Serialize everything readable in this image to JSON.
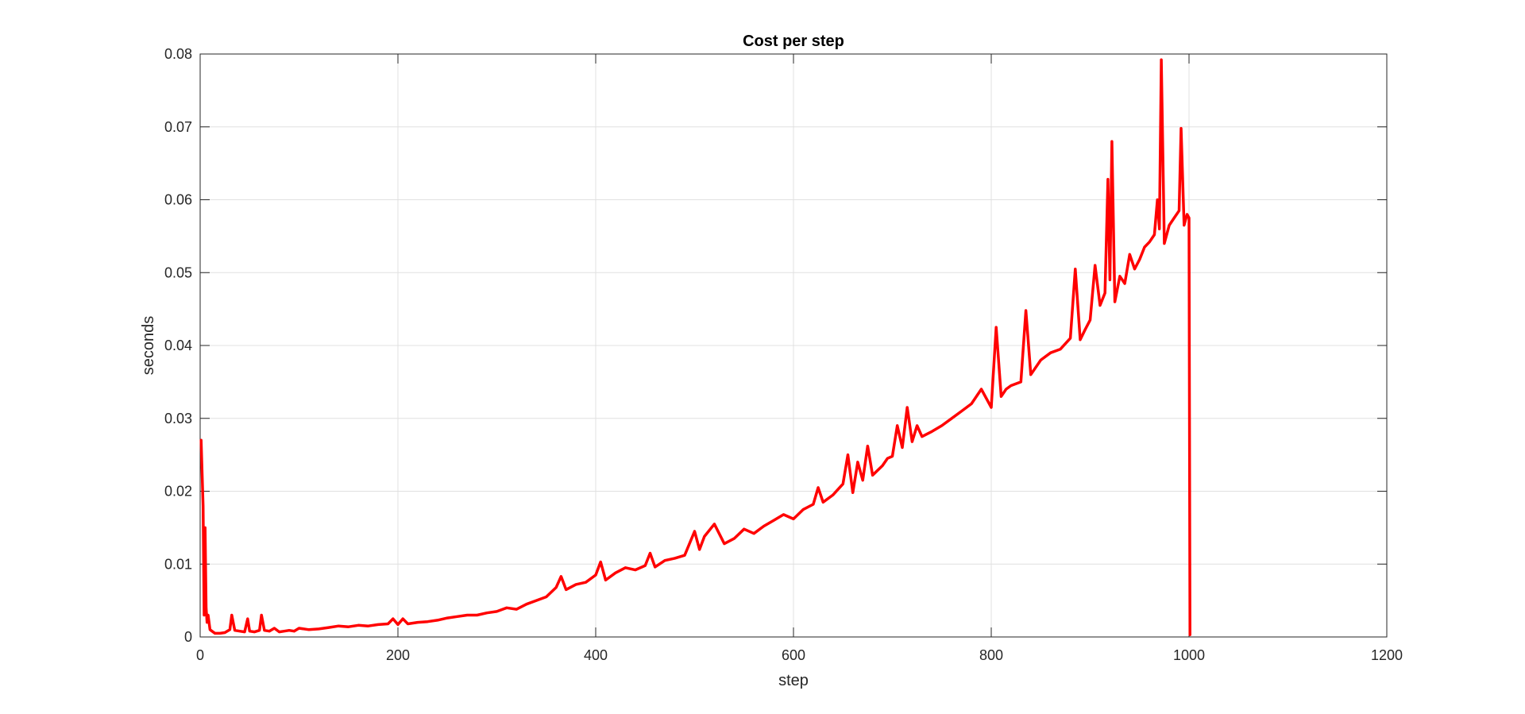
{
  "chart_data": {
    "type": "line",
    "title": "Cost per step",
    "xlabel": "step",
    "ylabel": "seconds",
    "xlim": [
      0,
      1200
    ],
    "ylim": [
      0,
      0.08
    ],
    "xticks": [
      0,
      200,
      400,
      600,
      800,
      1000,
      1200
    ],
    "yticks": [
      0,
      0.01,
      0.02,
      0.03,
      0.04,
      0.05,
      0.06,
      0.07,
      0.08
    ],
    "xtick_labels": [
      "0",
      "200",
      "400",
      "600",
      "800",
      "1000",
      "1200"
    ],
    "ytick_labels": [
      "0",
      "0.01",
      "0.02",
      "0.03",
      "0.04",
      "0.05",
      "0.06",
      "0.07",
      "0.08"
    ],
    "grid": true,
    "colors": {
      "line": "#ff0000",
      "grid": "#e0e0e0",
      "axis": "#262626"
    },
    "series": [
      {
        "x": [
          1,
          3,
          4,
          5,
          6,
          7,
          8,
          10,
          12,
          15,
          20,
          25,
          30,
          32,
          35,
          40,
          45,
          48,
          50,
          55,
          60,
          62,
          65,
          70,
          75,
          80,
          85,
          90,
          95,
          100,
          110,
          120,
          130,
          140,
          150,
          160,
          170,
          180,
          190,
          195,
          200,
          205,
          210,
          220,
          230,
          240,
          250,
          260,
          270,
          280,
          290,
          300,
          310,
          320,
          330,
          340,
          350,
          360,
          365,
          370,
          380,
          390,
          400,
          405,
          410,
          420,
          430,
          440,
          450,
          455,
          460,
          470,
          480,
          490,
          500,
          505,
          510,
          520,
          530,
          540,
          550,
          560,
          570,
          580,
          590,
          600,
          610,
          620,
          625,
          630,
          640,
          650,
          655,
          660,
          665,
          670,
          675,
          680,
          690,
          695,
          700,
          705,
          710,
          715,
          720,
          725,
          730,
          740,
          750,
          760,
          770,
          780,
          790,
          800,
          805,
          810,
          815,
          820,
          830,
          835,
          840,
          850,
          860,
          870,
          880,
          885,
          890,
          895,
          900,
          905,
          910,
          915,
          918,
          920,
          922,
          925,
          930,
          935,
          940,
          945,
          950,
          955,
          960,
          965,
          968,
          970,
          972,
          975,
          980,
          985,
          990,
          992,
          995,
          998,
          1000,
          1001
        ],
        "y": [
          0.027,
          0.018,
          0.003,
          0.015,
          0.004,
          0.002,
          0.003,
          0.001,
          0.0008,
          0.0005,
          0.0005,
          0.0006,
          0.001,
          0.003,
          0.0009,
          0.0008,
          0.0007,
          0.0025,
          0.0008,
          0.0007,
          0.0009,
          0.003,
          0.0009,
          0.0008,
          0.0012,
          0.0007,
          0.0008,
          0.0009,
          0.0008,
          0.0012,
          0.001,
          0.0011,
          0.0013,
          0.0015,
          0.0014,
          0.0016,
          0.0015,
          0.0017,
          0.0018,
          0.0025,
          0.0017,
          0.0025,
          0.0018,
          0.002,
          0.0021,
          0.0023,
          0.0026,
          0.0028,
          0.003,
          0.003,
          0.0033,
          0.0035,
          0.004,
          0.0038,
          0.0045,
          0.005,
          0.0055,
          0.0068,
          0.0083,
          0.0065,
          0.0072,
          0.0075,
          0.0085,
          0.0103,
          0.0078,
          0.0088,
          0.0095,
          0.0092,
          0.0098,
          0.0115,
          0.0096,
          0.0105,
          0.0108,
          0.0112,
          0.0145,
          0.012,
          0.0138,
          0.0155,
          0.0128,
          0.0135,
          0.0148,
          0.0142,
          0.0152,
          0.016,
          0.0168,
          0.0162,
          0.0175,
          0.0182,
          0.0205,
          0.0185,
          0.0195,
          0.021,
          0.025,
          0.0198,
          0.024,
          0.0215,
          0.0262,
          0.0222,
          0.0235,
          0.0245,
          0.0248,
          0.029,
          0.026,
          0.0315,
          0.0268,
          0.029,
          0.0275,
          0.0282,
          0.029,
          0.03,
          0.031,
          0.032,
          0.034,
          0.0315,
          0.0425,
          0.033,
          0.034,
          0.0345,
          0.035,
          0.0448,
          0.036,
          0.038,
          0.039,
          0.0395,
          0.041,
          0.0505,
          0.0408,
          0.0422,
          0.0435,
          0.051,
          0.0455,
          0.0472,
          0.0628,
          0.049,
          0.068,
          0.046,
          0.0495,
          0.0485,
          0.0525,
          0.0505,
          0.0518,
          0.0535,
          0.0542,
          0.0552,
          0.06,
          0.056,
          0.0792,
          0.054,
          0.0565,
          0.0575,
          0.0585,
          0.0698,
          0.0565,
          0.058,
          0.0575,
          0.0003
        ]
      }
    ]
  }
}
